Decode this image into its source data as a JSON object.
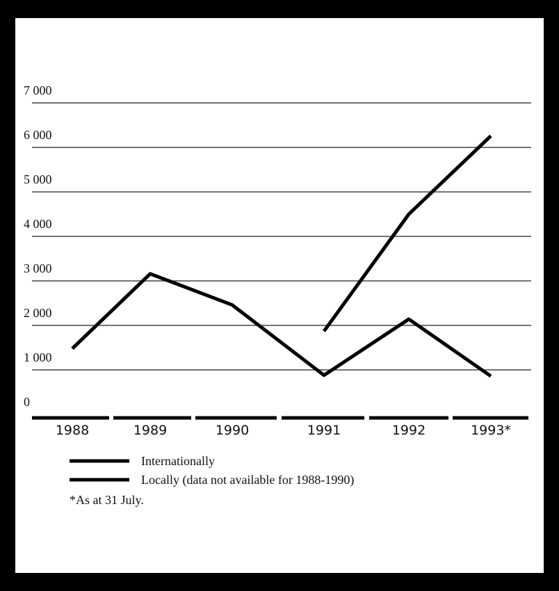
{
  "chart_data": {
    "type": "line",
    "title": "",
    "xlabel": "",
    "ylabel": "",
    "categories": [
      "1988",
      "1989",
      "1990",
      "1991",
      "1992",
      "1993*"
    ],
    "y_tick_labels": [
      "0",
      "1 000",
      "2 000",
      "3 000",
      "4 000",
      "5 000",
      "6 000",
      "7 000"
    ],
    "y_tick_values": [
      0,
      1000,
      2000,
      3000,
      4000,
      5000,
      6000,
      7000
    ],
    "ylim": [
      0,
      7000
    ],
    "grid": true,
    "legend_position": "bottom-left",
    "series": [
      {
        "name": "Internationally",
        "values": [
          1480,
          3160,
          2460,
          880,
          2140,
          860
        ]
      },
      {
        "name": "Locally (data not available for 1988-1990)",
        "values": [
          null,
          null,
          null,
          1870,
          4500,
          6260
        ]
      }
    ],
    "footnote": "*As at 31 July."
  }
}
